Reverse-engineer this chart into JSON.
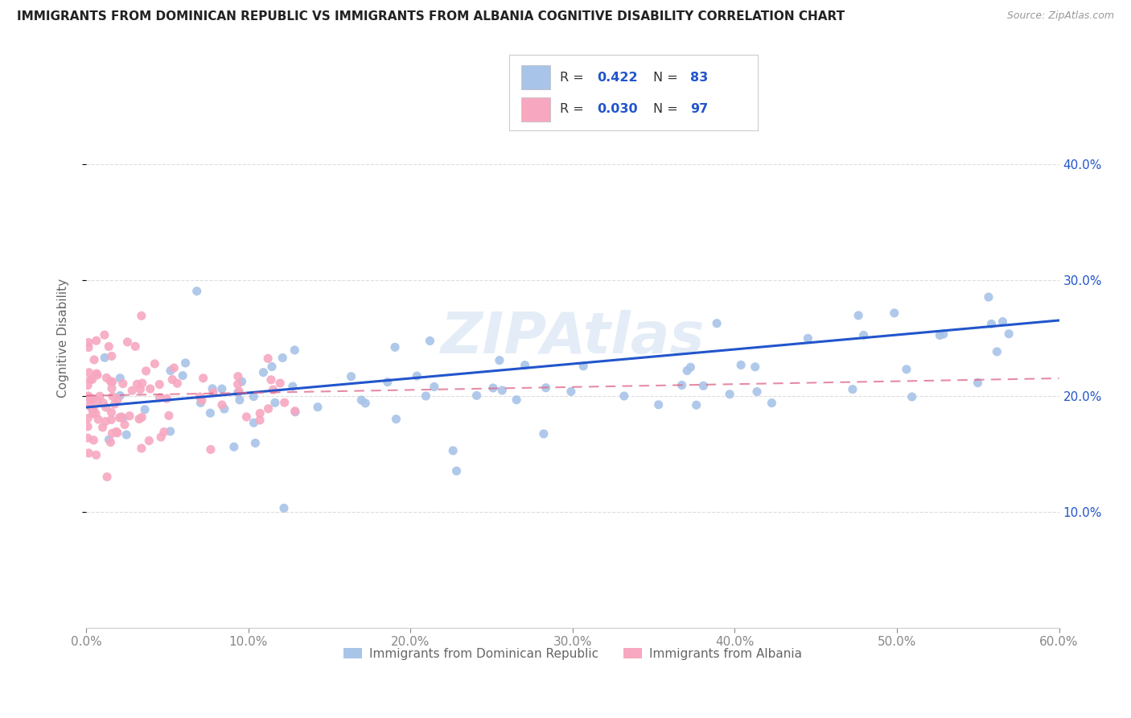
{
  "title": "IMMIGRANTS FROM DOMINICAN REPUBLIC VS IMMIGRANTS FROM ALBANIA COGNITIVE DISABILITY CORRELATION CHART",
  "source": "Source: ZipAtlas.com",
  "ylabel_label": "Cognitive Disability",
  "legend_labels": [
    "Immigrants from Dominican Republic",
    "Immigrants from Albania"
  ],
  "series1_color": "#a8c4e8",
  "series2_color": "#f7a8c0",
  "series1_line_color": "#2255cc",
  "series2_line_color": "#dd6688",
  "legend_text_color": "#2255cc",
  "R1": 0.422,
  "N1": 83,
  "R2": 0.03,
  "N2": 97,
  "watermark": "ZIPAtlas",
  "xlim": [
    0.0,
    0.6
  ],
  "ylim": [
    0.0,
    0.5
  ],
  "xtick_vals": [
    0.0,
    0.1,
    0.2,
    0.3,
    0.4,
    0.5,
    0.6
  ],
  "xtick_labels": [
    "0.0%",
    "10.0%",
    "20.0%",
    "30.0%",
    "40.0%",
    "50.0%",
    "60.0%"
  ],
  "ytick_vals": [
    0.1,
    0.2,
    0.3,
    0.4
  ],
  "ytick_labels": [
    "10.0%",
    "20.0%",
    "30.0%",
    "40.0%"
  ],
  "grid_color": "#dddddd",
  "spine_color": "#cccccc",
  "tick_color": "#888888",
  "title_fontsize": 11,
  "axis_fontsize": 11,
  "source_fontsize": 9,
  "watermark_fontsize": 52,
  "watermark_color": "#c5d8ee",
  "watermark_alpha": 0.45
}
